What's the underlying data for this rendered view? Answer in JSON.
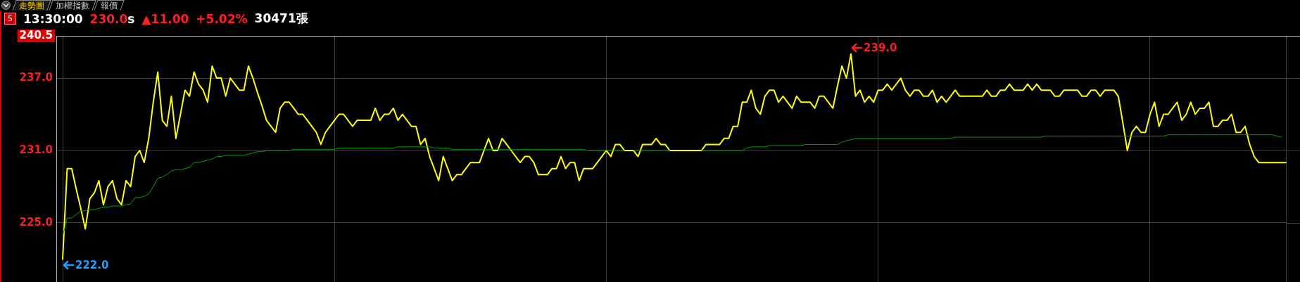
{
  "chart_data": {
    "type": "line",
    "title": "5 13:30:00 230.0s ▲11.00 +5.02% 30471張",
    "annotations": [
      "走勢圖",
      "加權指數",
      "報價",
      "239.0",
      "222.0"
    ],
    "categories": [
      null,
      null,
      null,
      null,
      null,
      null,
      null,
      null,
      null,
      null,
      null,
      null,
      null,
      null,
      null,
      null,
      null,
      null,
      null,
      null,
      null,
      null,
      null,
      null,
      null,
      null,
      null,
      null,
      null,
      null,
      null,
      null,
      null,
      null,
      null,
      null,
      null,
      null,
      null,
      null,
      null,
      null,
      null,
      null,
      null,
      null,
      null,
      null,
      null,
      null,
      null,
      null,
      null,
      null,
      null,
      null,
      null,
      null,
      null,
      null,
      null,
      null,
      null,
      null,
      null,
      null,
      null,
      null,
      null,
      null,
      null,
      null,
      null,
      null,
      null,
      null,
      null,
      null,
      null,
      null,
      null,
      null,
      null,
      null,
      null,
      null,
      null,
      null,
      null,
      null,
      null,
      null,
      null,
      null,
      null,
      null,
      null,
      null,
      null,
      null,
      null,
      null,
      null,
      null,
      null,
      null,
      null,
      null,
      null,
      null,
      null,
      null,
      null,
      null,
      null,
      null,
      null,
      null,
      null,
      null,
      null,
      null,
      null,
      null,
      null,
      null,
      null,
      null,
      null,
      null,
      null,
      null,
      null,
      null,
      null,
      null,
      null,
      null,
      null,
      null,
      null,
      null,
      null,
      null,
      null,
      null,
      null,
      null,
      null,
      null,
      null,
      null,
      null,
      null,
      null,
      null,
      null,
      null,
      null,
      null,
      null,
      null,
      null,
      null,
      null,
      null,
      null,
      null,
      null,
      null,
      null,
      null,
      null,
      null,
      null,
      null,
      null,
      null,
      null,
      null,
      null,
      null,
      null,
      null,
      null,
      null,
      null,
      null,
      null,
      null,
      null,
      null,
      null,
      null,
      null,
      null,
      null,
      null,
      null,
      null,
      null,
      null,
      null,
      null,
      null,
      null,
      null,
      null,
      null,
      null,
      null,
      null,
      null,
      null,
      null,
      null,
      null,
      null,
      null,
      null,
      null,
      null,
      null,
      null,
      null,
      null,
      null,
      null,
      null,
      null,
      null,
      null,
      null,
      null,
      null,
      null,
      null,
      null,
      null,
      null,
      null,
      null,
      null,
      null,
      null,
      null,
      null,
      null,
      null,
      null,
      null,
      null,
      null,
      null,
      null,
      null,
      null,
      null,
      null,
      null,
      null,
      null,
      null,
      null,
      null,
      null,
      null,
      null,
      null,
      null,
      null
    ],
    "series": [
      {
        "color": "#ffff00",
        "values": [
          222.0,
          229.5,
          229.5,
          227.8,
          226.2,
          224.5,
          227.0,
          227.5,
          228.5,
          226.5,
          228.0,
          228.5,
          227.0,
          226.5,
          228.5,
          228.0,
          230.5,
          231.0,
          230.0,
          232.0,
          235.0,
          237.5,
          233.5,
          233.0,
          235.5,
          232.0,
          234.0,
          236.0,
          235.5,
          237.5,
          236.5,
          236.0,
          235.0,
          238.0,
          237.0,
          237.0,
          235.5,
          237.0,
          236.5,
          236.0,
          236.0,
          238.0,
          237.0,
          235.8,
          234.7,
          233.5,
          233.0,
          232.5,
          234.5,
          235.0,
          235.0,
          234.5,
          234.0,
          234.0,
          233.5,
          233.0,
          232.5,
          231.5,
          232.5,
          233.0,
          233.5,
          234.0,
          234.0,
          233.5,
          233.0,
          233.5,
          233.5,
          233.5,
          233.5,
          234.5,
          233.5,
          234.0,
          234.0,
          234.5,
          233.5,
          234.0,
          233.5,
          233.0,
          233.0,
          231.5,
          232.0,
          230.5,
          229.5,
          228.5,
          230.5,
          229.5,
          228.5,
          229.0,
          229.0,
          229.5,
          230.0,
          230.0,
          230.0,
          231.0,
          232.0,
          231.0,
          231.0,
          232.0,
          231.5,
          231.0,
          230.5,
          230.0,
          230.5,
          230.5,
          230.0,
          229.0,
          229.0,
          229.0,
          229.5,
          229.5,
          230.5,
          229.5,
          230.0,
          230.0,
          228.5,
          229.5,
          229.5,
          229.5,
          230.0,
          230.5,
          231.0,
          230.5,
          231.5,
          231.5,
          231.0,
          231.0,
          231.0,
          230.5,
          231.5,
          231.5,
          231.5,
          232.0,
          231.5,
          231.5,
          231.0,
          231.0,
          231.0,
          231.0,
          231.0,
          231.0,
          231.0,
          231.0,
          231.5,
          231.5,
          231.5,
          231.5,
          232.0,
          232.0,
          233.0,
          233.0,
          235.0,
          235.0,
          236.0,
          234.5,
          234.0,
          235.5,
          236.0,
          236.0,
          235.0,
          235.5,
          235.0,
          234.5,
          235.5,
          235.0,
          235.0,
          235.0,
          234.5,
          235.5,
          235.5,
          235.0,
          234.5,
          236.3,
          238.0,
          237.0,
          239.0,
          235.5,
          236.0,
          235.0,
          235.5,
          235.0,
          236.0,
          236.0,
          236.5,
          236.0,
          236.5,
          237.0,
          236.0,
          235.5,
          236.0,
          236.0,
          235.5,
          235.5,
          236.0,
          235.0,
          235.5,
          235.0,
          235.5,
          236.0,
          235.5,
          235.5,
          235.5,
          235.5,
          235.5,
          235.5,
          236.0,
          235.5,
          235.5,
          236.0,
          236.0,
          236.5,
          236.0,
          236.0,
          236.0,
          236.5,
          236.0,
          236.5,
          236.0,
          236.0,
          236.0,
          235.5,
          235.5,
          236.0,
          236.0,
          236.0,
          236.0,
          235.5,
          235.5,
          236.0,
          236.0,
          235.5,
          236.0,
          236.0,
          236.0,
          235.5,
          233.3,
          231.0,
          232.5,
          233.0,
          232.5,
          232.5,
          234.0,
          235.0,
          233.0,
          234.0,
          234.0,
          234.5,
          235.0,
          233.5,
          234.0,
          235.0,
          234.0,
          234.5,
          234.5,
          235.0,
          233.0,
          233.0,
          233.5,
          233.5,
          234.0,
          232.5,
          232.5,
          233.0,
          231.5,
          230.5,
          230.0,
          230.0,
          230.0,
          230.0,
          230.0,
          230.0,
          230.0
        ]
      },
      {
        "color": "#00a000",
        "values": [
          223.9,
          225.4,
          225.4,
          225.7,
          226.0,
          226.0,
          226.1,
          226.1,
          226.2,
          226.3,
          226.3,
          226.4,
          226.4,
          226.4,
          226.5,
          226.6,
          227.1,
          227.1,
          227.2,
          227.4,
          228.0,
          228.7,
          228.8,
          229.0,
          229.3,
          229.4,
          229.4,
          229.5,
          229.6,
          230.0,
          230.0,
          230.1,
          230.2,
          230.3,
          230.5,
          230.5,
          230.6,
          230.6,
          230.6,
          230.6,
          230.6,
          230.7,
          230.8,
          230.9,
          230.9,
          231.0,
          231.0,
          231.0,
          231.0,
          231.0,
          231.0,
          231.1,
          231.1,
          231.1,
          231.1,
          231.1,
          231.1,
          231.1,
          231.1,
          231.1,
          231.1,
          231.2,
          231.2,
          231.2,
          231.2,
          231.2,
          231.2,
          231.2,
          231.2,
          231.2,
          231.2,
          231.2,
          231.2,
          231.2,
          231.3,
          231.3,
          231.3,
          231.3,
          231.3,
          231.3,
          231.3,
          231.3,
          231.2,
          231.2,
          231.2,
          231.2,
          231.1,
          231.1,
          231.1,
          231.1,
          231.1,
          231.1,
          231.1,
          231.1,
          231.1,
          231.1,
          231.1,
          231.1,
          231.1,
          231.1,
          231.1,
          231.1,
          231.1,
          231.1,
          231.1,
          231.1,
          231.1,
          231.1,
          231.1,
          231.1,
          231.1,
          231.1,
          231.1,
          231.1,
          231.1,
          231.1,
          231.0,
          231.0,
          231.0,
          231.0,
          231.0,
          231.0,
          231.0,
          231.0,
          231.0,
          null,
          231.0,
          231.0,
          231.0,
          231.0,
          231.0,
          231.0,
          231.0,
          231.0,
          231.0,
          null,
          null,
          null,
          null,
          null,
          null,
          231.0,
          231.0,
          231.0,
          231.0,
          231.0,
          231.0,
          231.0,
          231.0,
          231.0,
          231.0,
          231.2,
          231.3,
          231.3,
          231.3,
          231.3,
          231.4,
          231.4,
          231.4,
          231.4,
          231.4,
          231.4,
          231.4,
          231.4,
          231.5,
          231.5,
          231.5,
          231.5,
          231.5,
          231.5,
          231.5,
          231.5,
          231.7,
          231.8,
          231.9,
          232.0,
          232.0,
          232.0,
          232.0,
          232.0,
          232.0,
          232.0,
          232.0,
          232.0,
          232.0,
          232.0,
          232.0,
          232.0,
          232.0,
          232.0,
          232.0,
          232.0,
          232.0,
          232.0,
          232.0,
          232.0,
          232.0,
          232.1,
          232.1,
          232.1,
          232.1,
          232.1,
          232.1,
          232.1,
          232.1,
          232.1,
          232.1,
          232.1,
          232.1,
          232.1,
          232.1,
          232.1,
          232.1,
          232.1,
          232.1,
          232.1,
          232.1,
          232.2,
          232.2,
          232.2,
          232.2,
          232.2,
          232.2,
          232.2,
          232.2,
          232.2,
          232.2,
          232.2,
          232.2,
          232.2,
          232.2,
          232.2,
          232.2,
          232.2,
          232.2,
          232.2,
          232.2,
          232.2,
          232.2,
          232.2,
          232.2,
          232.2,
          232.2,
          232.2,
          232.3,
          232.3,
          232.3,
          232.3,
          232.3,
          232.3,
          232.3,
          232.3,
          232.3,
          232.3,
          232.3,
          232.3,
          232.3,
          232.3,
          232.3,
          232.3,
          232.3,
          232.3,
          232.3,
          232.3,
          232.3,
          232.3,
          232.3,
          232.3,
          232.2,
          232.1,
          null
        ]
      }
    ],
    "ylim": [
      220.1,
      240.5
    ],
    "yticks": [
      {
        "value": 225,
        "label": "225.0"
      },
      {
        "value": 231,
        "label": "231.0"
      },
      {
        "value": 237,
        "label": "237.0"
      },
      240.5
    ],
    "grid": true,
    "marker": "none",
    "tick_labels": "y"
  }
}
